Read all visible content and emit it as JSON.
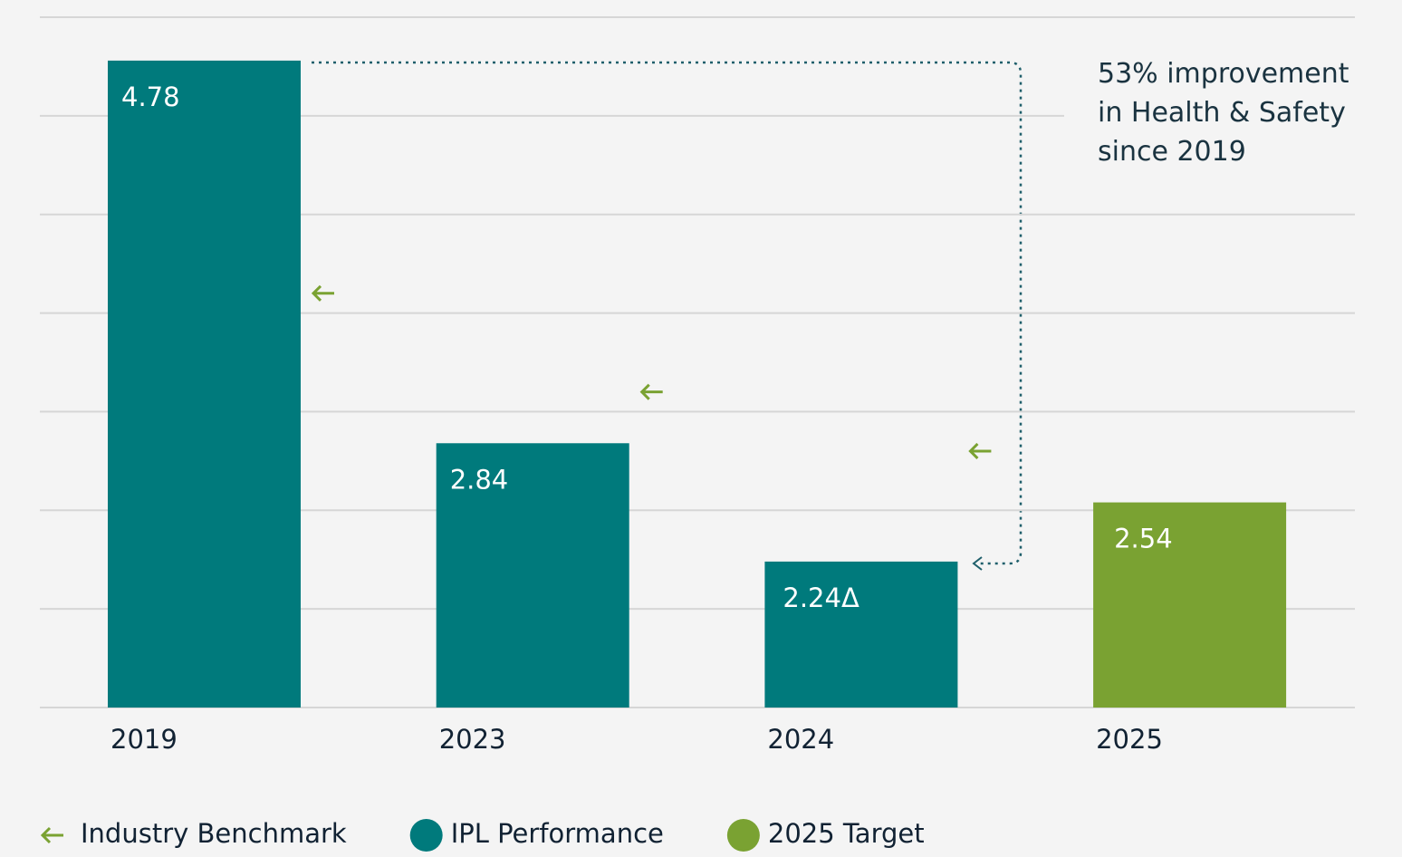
{
  "chart_data": {
    "type": "bar",
    "categories": [
      "2019",
      "2023",
      "2024",
      "2025"
    ],
    "series": [
      {
        "name": "Industry Benchmark",
        "color": "#7aa232",
        "marker": "arrow",
        "values": [
          3.6,
          3.1,
          2.8,
          null
        ]
      },
      {
        "name": "IPL Performance",
        "color": "#007a7c",
        "values": [
          4.78,
          2.84,
          2.24,
          null
        ],
        "value_labels": [
          "4.78",
          "2.84",
          "2.24Δ",
          null
        ]
      },
      {
        "name": "2025 Target",
        "color": "#7aa232",
        "values": [
          null,
          null,
          null,
          2.54
        ],
        "value_labels": [
          null,
          null,
          null,
          "2.54"
        ]
      }
    ],
    "annotation": "53% improvement in Health & Safety since 2019",
    "ylim": [
      1.5,
      5
    ],
    "yticks": [
      1.5,
      2,
      2.5,
      3,
      3.5,
      4,
      4.5,
      5
    ],
    "grid": true
  }
}
